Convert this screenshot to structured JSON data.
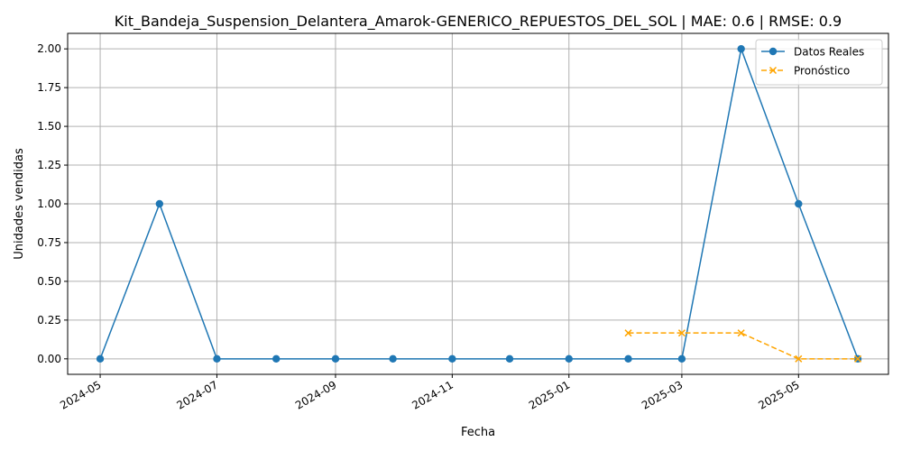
{
  "chart_data": {
    "type": "line",
    "title": "Kit_Bandeja_Suspension_Delantera_Amarok-GENERICO_REPUESTOS_DEL_SOL | MAE: 0.6 | RMSE: 0.9",
    "xlabel": "Fecha",
    "ylabel": "Unidades vendidas",
    "xlim": [
      "2024-04-14",
      "2025-06-17"
    ],
    "ylim": [
      -0.1,
      2.1
    ],
    "grid": true,
    "legend_position": "top-right",
    "x_ticks": [
      "2024-05",
      "2024-07",
      "2024-09",
      "2024-11",
      "2025-01",
      "2025-03",
      "2025-05"
    ],
    "y_ticks": [
      "0.00",
      "0.25",
      "0.50",
      "0.75",
      "1.00",
      "1.25",
      "1.50",
      "1.75",
      "2.00"
    ],
    "series": [
      {
        "name": "Datos Reales",
        "color": "#1f77b4",
        "style": "solid",
        "marker": "circle",
        "x": [
          "2024-05-01",
          "2024-06-01",
          "2024-07-01",
          "2024-08-01",
          "2024-09-01",
          "2024-10-01",
          "2024-11-01",
          "2024-12-01",
          "2025-01-01",
          "2025-02-01",
          "2025-03-01",
          "2025-04-01",
          "2025-05-01",
          "2025-06-01"
        ],
        "values": [
          0,
          1,
          0,
          0,
          0,
          0,
          0,
          0,
          0,
          0,
          0,
          2,
          1,
          0
        ]
      },
      {
        "name": "Pronóstico",
        "color": "#ffa500",
        "style": "dashed",
        "marker": "x",
        "x": [
          "2025-02-01",
          "2025-03-01",
          "2025-04-01",
          "2025-05-01",
          "2025-06-01"
        ],
        "values": [
          0.1667,
          0.1667,
          0.1667,
          0,
          0
        ]
      }
    ]
  }
}
